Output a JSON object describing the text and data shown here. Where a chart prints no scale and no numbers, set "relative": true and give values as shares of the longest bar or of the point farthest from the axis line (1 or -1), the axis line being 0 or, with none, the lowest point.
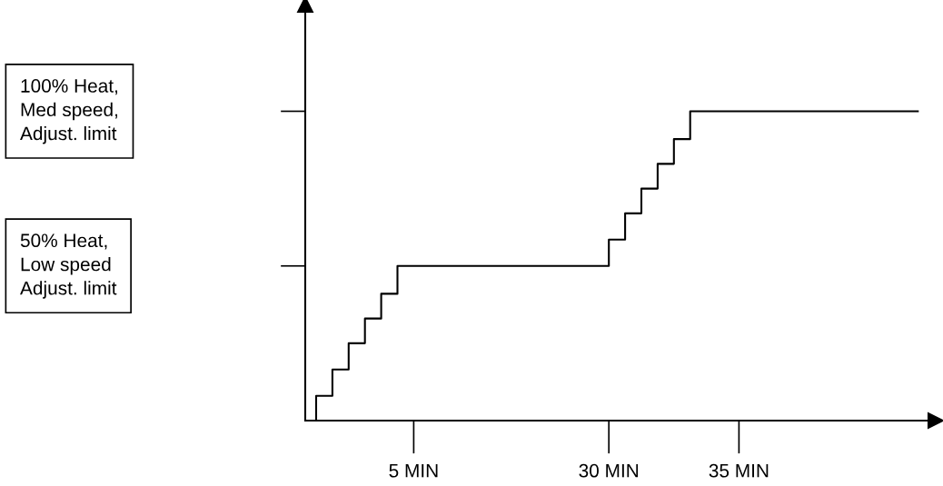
{
  "chart_data": {
    "type": "step",
    "relative": true,
    "categories": [
      null,
      null,
      null,
      null,
      null,
      null,
      null,
      "5 MIN",
      null,
      null,
      null,
      null,
      null,
      null,
      null,
      null,
      null,
      null,
      null,
      "30 MIN",
      null,
      null,
      null,
      null,
      null,
      null,
      null,
      "35 MIN",
      null,
      null,
      null,
      null,
      null,
      null,
      null,
      null,
      null,
      null,
      null
    ],
    "values": [
      0,
      0.08,
      0.165,
      0.25,
      0.33,
      0.41,
      0.5,
      0.5,
      0.5,
      0.5,
      0.5,
      0.5,
      0.5,
      0.5,
      0.5,
      0.5,
      0.5,
      0.5,
      0.5,
      0.585,
      0.67,
      0.75,
      0.83,
      0.91,
      1,
      1,
      1,
      1,
      1,
      1,
      1,
      1,
      1,
      1,
      1,
      1,
      1,
      1,
      1
    ],
    "color": "#000000",
    "annotations": [
      "50% Heat,\nLow speed\nAdjust. limit",
      "100% Heat,\nMed speed,\nAdjust. limit"
    ],
    "grid": false
  }
}
